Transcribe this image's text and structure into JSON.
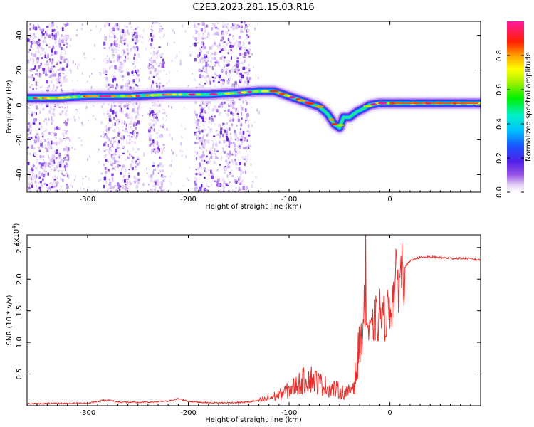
{
  "title": "C2E3.2023.281.15.03.R16",
  "chart_data": [
    {
      "type": "heatmap",
      "xlabel": "Height of straight line (km)",
      "ylabel": "Frequency (Hz)",
      "xlim": [
        -360,
        90
      ],
      "ylim": [
        -50,
        48
      ],
      "x_ticks": [
        -300,
        -200,
        -100,
        0
      ],
      "x_tick_labels": [
        "-300",
        "-200",
        "-100",
        "0"
      ],
      "y_ticks": [
        -40,
        -20,
        0,
        20,
        40
      ],
      "y_tick_labels": [
        "-40",
        "-20",
        "0",
        "20",
        "40"
      ],
      "colorbar": {
        "label": "Normalized spectral amplitude",
        "range": [
          0,
          1
        ],
        "ticks": [
          0.0,
          0.2,
          0.4,
          0.6,
          0.8
        ],
        "tick_labels": [
          "0.0",
          "0.2",
          "0.4",
          "0.6",
          "0.8"
        ],
        "colormap": "rainbow (white-purple-blue-cyan-green-yellow-orange-red-pink)"
      },
      "ridge": {
        "x": [
          -360,
          -330,
          -300,
          -260,
          -220,
          -180,
          -150,
          -130,
          -115,
          -100,
          -90,
          -80,
          -70,
          -62,
          -55,
          -50,
          -46,
          -40,
          -33,
          -26,
          -20,
          -10,
          0,
          30,
          60,
          90
        ],
        "y": [
          4,
          4,
          5,
          5,
          6,
          6,
          7,
          8,
          8,
          5,
          3,
          1,
          -1,
          -5,
          -11,
          -13,
          -7,
          -7,
          -4,
          -2,
          0,
          1,
          1,
          1,
          1,
          1
        ]
      },
      "noise_bands_x": [
        [
          -360,
          -320
        ],
        [
          -285,
          -250
        ],
        [
          -240,
          -225
        ],
        [
          -195,
          -160
        ],
        [
          -160,
          -140
        ]
      ]
    },
    {
      "type": "line",
      "xlabel": "Height of straight line (km)",
      "ylabel": "SNR (10 * v/v)",
      "y_multiplier_label": "(x10",
      "y_multiplier_exp": "4",
      "y_multiplier_close": ")",
      "xlim": [
        -360,
        90
      ],
      "ylim": [
        0,
        27000
      ],
      "x_ticks": [
        -300,
        -200,
        -100,
        0
      ],
      "x_tick_labels": [
        "-300",
        "-200",
        "-100",
        "0"
      ],
      "y_ticks": [
        5000,
        10000,
        15000,
        20000,
        25000
      ],
      "y_tick_labels": [
        "0.5",
        "1.0",
        "1.5",
        "2.0",
        "2.5"
      ],
      "color": "#e8302c",
      "series": [
        {
          "x": [
            -360,
            -330,
            -300,
            -290,
            -280,
            -270,
            -250,
            -220,
            -210,
            -200,
            -180,
            -160,
            -140,
            -130,
            -120,
            -110,
            -100,
            -95,
            -90,
            -85,
            -80,
            -75,
            -70,
            -65,
            -60,
            -55,
            -50,
            -45,
            -40,
            -35,
            -30,
            -27,
            -25,
            -23,
            -20,
            -17,
            -15,
            -12,
            -10,
            -7,
            -5,
            -2,
            0,
            3,
            5,
            8,
            10,
            15,
            20,
            25,
            30,
            40,
            50,
            60,
            70,
            80,
            90
          ],
          "y": [
            300,
            350,
            400,
            700,
            900,
            600,
            500,
            700,
            1100,
            700,
            450,
            450,
            600,
            800,
            1200,
            1700,
            2500,
            3000,
            3500,
            4000,
            4500,
            4000,
            3500,
            3200,
            2800,
            2600,
            2400,
            2000,
            2200,
            4000,
            9000,
            12000,
            16000,
            13000,
            11000,
            12000,
            14000,
            13000,
            15000,
            13500,
            14000,
            15000,
            16000,
            17000,
            19000,
            20000,
            21000,
            22000,
            22800,
            23300,
            23400,
            23500,
            23400,
            23300,
            23300,
            23200,
            23000
          ]
        }
      ]
    }
  ]
}
